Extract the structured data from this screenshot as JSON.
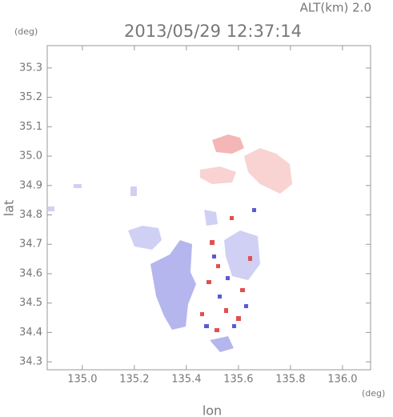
{
  "chart_data": {
    "type": "map",
    "title": "2013/05/29 12:37:14",
    "altitude_label": "ALT(km)  2.0",
    "xlabel": "lon",
    "ylabel": "lat",
    "x_unit": "(deg)",
    "y_unit": "(deg)",
    "xlim": [
      134.865,
      136.108
    ],
    "ylim": [
      34.273,
      35.376
    ],
    "xticks": [
      {
        "value": 135,
        "label": "135.0"
      },
      135.2,
      135.4,
      135.6,
      135.8,
      {
        "value": 136,
        "label": "136.0"
      }
    ],
    "yticks": [
      34.3,
      34.4,
      34.5,
      34.6,
      34.7,
      34.8,
      34.9,
      {
        "value": 35,
        "label": "35.0"
      },
      35.1,
      35.2,
      35.3
    ]
  }
}
